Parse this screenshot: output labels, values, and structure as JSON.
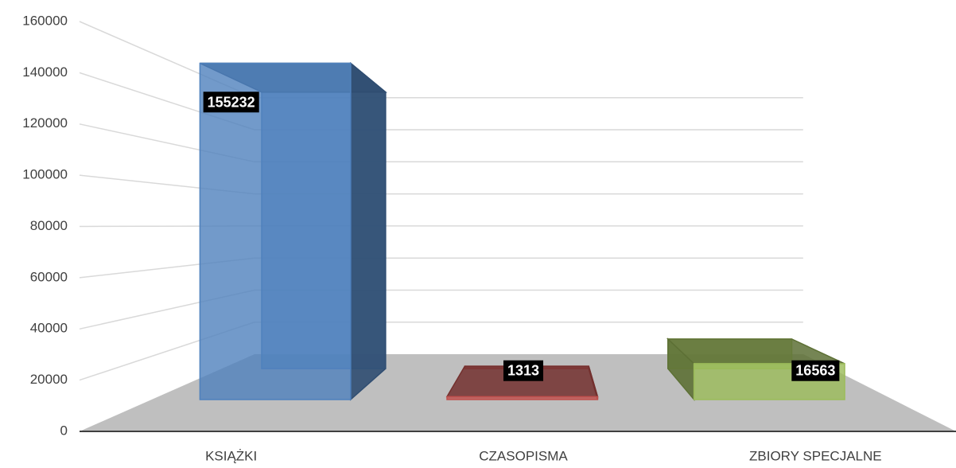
{
  "chart_data": {
    "type": "bar3d",
    "categories": [
      "KSIĄŻKI",
      "CZASOPISMA",
      "ZBIORY SPECJALNE"
    ],
    "values": [
      155232,
      1313,
      16563
    ],
    "colors": [
      "#4f81bd",
      "#c0504d",
      "#9bbb59"
    ],
    "ylim": [
      0,
      160000
    ],
    "yticks": [
      0,
      20000,
      40000,
      60000,
      80000,
      100000,
      120000,
      140000,
      160000
    ],
    "grid": true
  }
}
